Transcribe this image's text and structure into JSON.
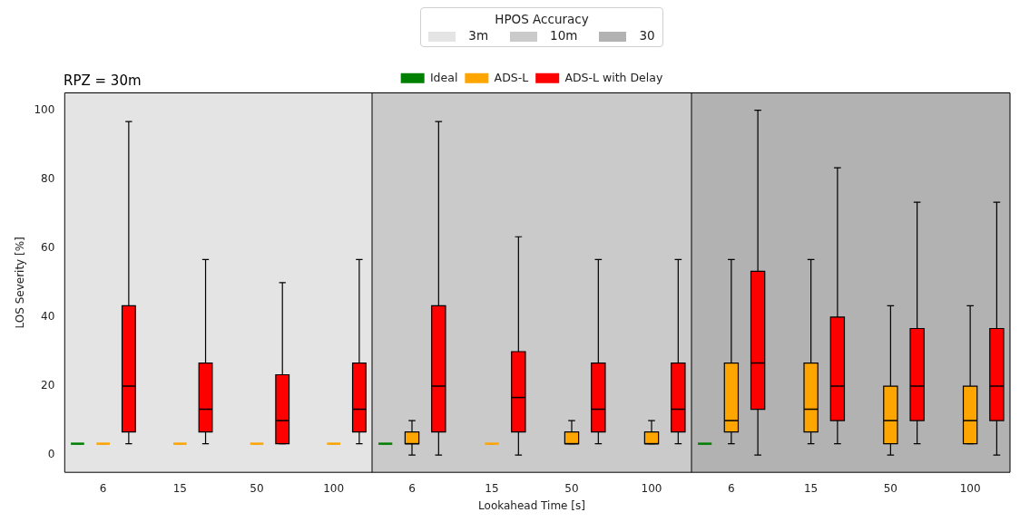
{
  "chart_data": [
    {
      "type": "box",
      "title": "RPZ = 30m",
      "ylabel": "LOS Severity [%]",
      "legend_title": "HPOS Accuracy",
      "categories": [
        "6",
        "15",
        "50",
        "100"
      ],
      "ylim": [
        -5,
        105
      ],
      "yticks": [
        0,
        20,
        40,
        60,
        80,
        100
      ],
      "bands": [
        {
          "axis": "x",
          "from": "6",
          "to": "100",
          "label": "3m",
          "color": "#e4e4e4"
        }
      ],
      "series": [
        {
          "color": "#008000",
          "boxes": [
            {
              "low": 3.3,
              "q1": 3.3,
              "median": 3.3,
              "q3": 3.3,
              "high": 3.3
            },
            null,
            null,
            null
          ]
        },
        {
          "color": "#ffa500",
          "boxes": [
            {
              "low": 3.3,
              "q1": 3.3,
              "median": 3.3,
              "q3": 3.3,
              "high": 3.3
            },
            {
              "low": 3.3,
              "q1": 3.3,
              "median": 3.3,
              "q3": 3.3,
              "high": 3.3
            },
            {
              "low": 3.3,
              "q1": 3.3,
              "median": 3.3,
              "q3": 3.3,
              "high": 3.3
            },
            {
              "low": 3.3,
              "q1": 3.3,
              "median": 3.3,
              "q3": 3.3,
              "high": 3.3
            }
          ]
        },
        {
          "color": "#ff0000",
          "boxes": [
            {
              "low": 3.3,
              "q1": 6.7,
              "median": 20,
              "q3": 43.3,
              "high": 96.7
            },
            {
              "low": 3.3,
              "q1": 6.7,
              "median": 13.3,
              "q3": 26.7,
              "high": 56.7
            },
            {
              "low": 3.3,
              "q1": 3.3,
              "median": 10,
              "q3": 23.3,
              "high": 50
            },
            {
              "low": 3.3,
              "q1": 6.7,
              "median": 13.3,
              "q3": 26.7,
              "high": 56.7
            }
          ]
        }
      ]
    },
    {
      "type": "box",
      "xlabel": "Lookahead Time [s]",
      "legend": "top",
      "tick_labels": "x",
      "categories": [
        "6",
        "15",
        "50",
        "100"
      ],
      "ylim": [
        -5,
        105
      ],
      "bands": [
        {
          "axis": "x",
          "from": "6",
          "to": "100",
          "label": "10m",
          "color": "#cacaca"
        }
      ],
      "series": [
        {
          "name": "Ideal",
          "color": "#008000",
          "boxes": [
            {
              "low": 3.3,
              "q1": 3.3,
              "median": 3.3,
              "q3": 3.3,
              "high": 3.3
            },
            null,
            null,
            null
          ]
        },
        {
          "name": "ADS-L",
          "color": "#ffa500",
          "boxes": [
            {
              "low": 0,
              "q1": 3.3,
              "median": 3.3,
              "q3": 6.7,
              "high": 10
            },
            {
              "low": 3.3,
              "q1": 3.3,
              "median": 3.3,
              "q3": 3.3,
              "high": 3.3
            },
            {
              "low": 3.3,
              "q1": 3.3,
              "median": 3.3,
              "q3": 6.7,
              "high": 10
            },
            {
              "low": 3.3,
              "q1": 3.3,
              "median": 3.3,
              "q3": 6.7,
              "high": 10
            }
          ]
        },
        {
          "name": "ADS-L with Delay",
          "color": "#ff0000",
          "boxes": [
            {
              "low": 0,
              "q1": 6.7,
              "median": 20,
              "q3": 43.3,
              "high": 96.7
            },
            {
              "low": 0,
              "q1": 6.7,
              "median": 16.7,
              "q3": 30,
              "high": 63.3
            },
            {
              "low": 3.3,
              "q1": 6.7,
              "median": 13.3,
              "q3": 26.7,
              "high": 56.7
            },
            {
              "low": 3.3,
              "q1": 6.7,
              "median": 13.3,
              "q3": 26.7,
              "high": 56.7
            }
          ]
        }
      ]
    },
    {
      "type": "box",
      "tick_labels": "x",
      "categories": [
        "6",
        "15",
        "50",
        "100"
      ],
      "ylim": [
        -5,
        105
      ],
      "bands": [
        {
          "axis": "x",
          "from": "6",
          "to": "100",
          "label": "30",
          "color": "#b2b2b2"
        }
      ],
      "series": [
        {
          "color": "#008000",
          "boxes": [
            {
              "low": 3.3,
              "q1": 3.3,
              "median": 3.3,
              "q3": 3.3,
              "high": 3.3
            },
            null,
            null,
            null
          ]
        },
        {
          "color": "#ffa500",
          "boxes": [
            {
              "low": 3.3,
              "q1": 6.7,
              "median": 10,
              "q3": 26.7,
              "high": 56.7
            },
            {
              "low": 3.3,
              "q1": 6.7,
              "median": 13.3,
              "q3": 26.7,
              "high": 56.7
            },
            {
              "low": 0,
              "q1": 3.3,
              "median": 10,
              "q3": 20,
              "high": 43.3
            },
            {
              "low": 3.3,
              "q1": 3.3,
              "median": 10,
              "q3": 20,
              "high": 43.3
            }
          ]
        },
        {
          "color": "#ff0000",
          "boxes": [
            {
              "low": 0,
              "q1": 13.3,
              "median": 26.7,
              "q3": 53.3,
              "high": 100
            },
            {
              "low": 3.3,
              "q1": 10,
              "median": 20,
              "q3": 40,
              "high": 83.3
            },
            {
              "low": 3.3,
              "q1": 10,
              "median": 20,
              "q3": 36.7,
              "high": 73.3
            },
            {
              "low": 0,
              "q1": 10,
              "median": 20,
              "q3": 36.7,
              "high": 73.3
            }
          ]
        }
      ]
    }
  ]
}
